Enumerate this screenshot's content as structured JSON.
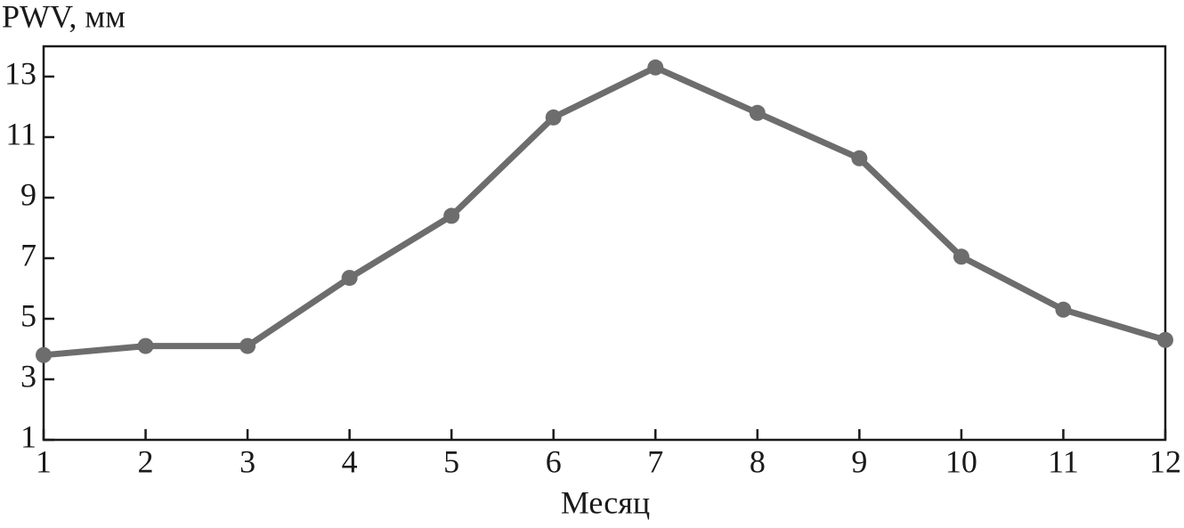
{
  "chart_data": {
    "type": "line",
    "ylabel": "PWV, мм",
    "xlabel": "Месяц",
    "x": [
      1,
      2,
      3,
      4,
      5,
      6,
      7,
      8,
      9,
      10,
      11,
      12
    ],
    "series": [
      {
        "color": "#6d6d6d",
        "values": [
          3.8,
          4.1,
          4.1,
          6.35,
          8.4,
          11.65,
          13.3,
          11.8,
          10.3,
          7.05,
          5.3,
          4.3
        ]
      }
    ],
    "xlim": [
      1,
      12
    ],
    "xticks": [
      1,
      2,
      3,
      4,
      5,
      6,
      7,
      8,
      9,
      10,
      11,
      12
    ],
    "ylim": [
      1,
      14
    ],
    "yticks": [
      1,
      3,
      5,
      7,
      9,
      11,
      13
    ]
  }
}
